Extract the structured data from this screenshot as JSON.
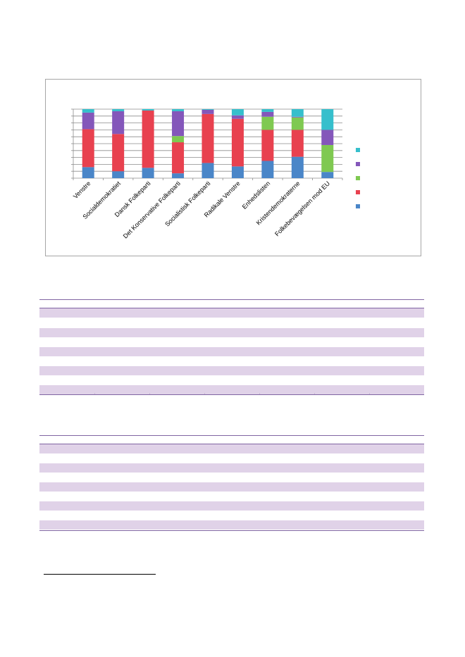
{
  "chart_data": {
    "type": "bar",
    "stacked": true,
    "percent": true,
    "categories": [
      "Venstre",
      "Socialdemokratiet",
      "Dansk Folkeparti",
      "Det Konservative Folkeparti",
      "Socialistisk Folkeparti",
      "Radikale Venstre",
      "Enhedslisten",
      "Kristendemokraterne",
      "Folkebevægelsen mod EU"
    ],
    "series": [
      {
        "color": "#4a86c8",
        "values": [
          16,
          10,
          15,
          7,
          22,
          17,
          25,
          31,
          9
        ]
      },
      {
        "color": "#e8414f",
        "values": [
          55,
          54,
          83,
          45,
          71,
          69,
          45,
          39,
          0
        ]
      },
      {
        "color": "#7fc951",
        "values": [
          0,
          0,
          0,
          9,
          0,
          0,
          19,
          18,
          39
        ]
      },
      {
        "color": "#8457ba",
        "values": [
          24,
          33,
          0,
          36,
          6,
          5,
          7,
          1,
          22
        ]
      },
      {
        "color": "#36bfcc",
        "values": [
          5,
          3,
          2,
          3,
          1,
          9,
          4,
          11,
          30
        ]
      }
    ],
    "ylim": [
      0,
      100
    ],
    "grid": true,
    "legend": "right"
  },
  "colors": {
    "frame_border": "#a6a6a6",
    "grid": "#8c8c8c",
    "table_rule": "#8064a2",
    "table_band": "#e0d2e8"
  }
}
